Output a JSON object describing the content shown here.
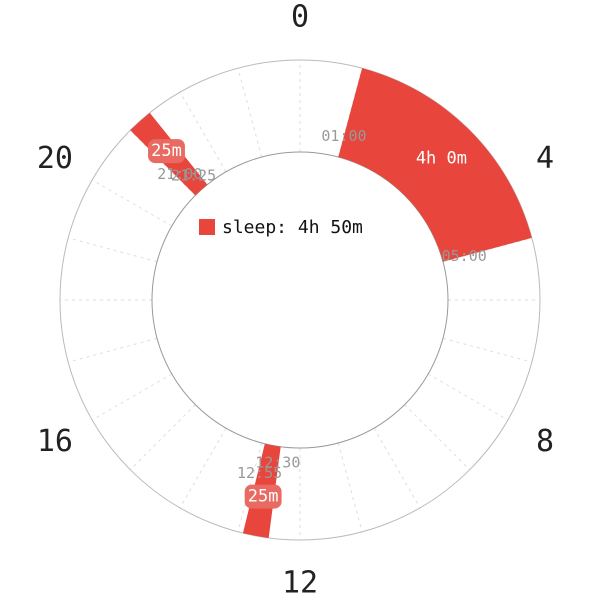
{
  "chart_data": {
    "type": "radial-24h-clock",
    "hour_labels": [
      {
        "hour": 0,
        "text": "0"
      },
      {
        "hour": 4,
        "text": "4"
      },
      {
        "hour": 8,
        "text": "8"
      },
      {
        "hour": 12,
        "text": "12"
      },
      {
        "hour": 16,
        "text": "16"
      },
      {
        "hour": 20,
        "text": "20"
      }
    ],
    "gridlines_every_hour": true,
    "legend": {
      "label": "sleep: 4h 50m",
      "color": "#e8453c",
      "placement": "center-top"
    },
    "series": [
      {
        "name": "sleep",
        "color": "#e8453c",
        "segments": [
          {
            "start": "01:00",
            "end": "05:00",
            "start_hour": 1.0,
            "end_hour": 5.0,
            "duration_label": "4h 0m"
          },
          {
            "start": "12:30",
            "end": "12:55",
            "start_hour": 12.5,
            "end_hour": 12.9167,
            "duration_label": "25m"
          },
          {
            "start": "21:00",
            "end": "21:25",
            "start_hour": 21.0,
            "end_hour": 21.4167,
            "duration_label": "25m"
          }
        ]
      }
    ]
  }
}
